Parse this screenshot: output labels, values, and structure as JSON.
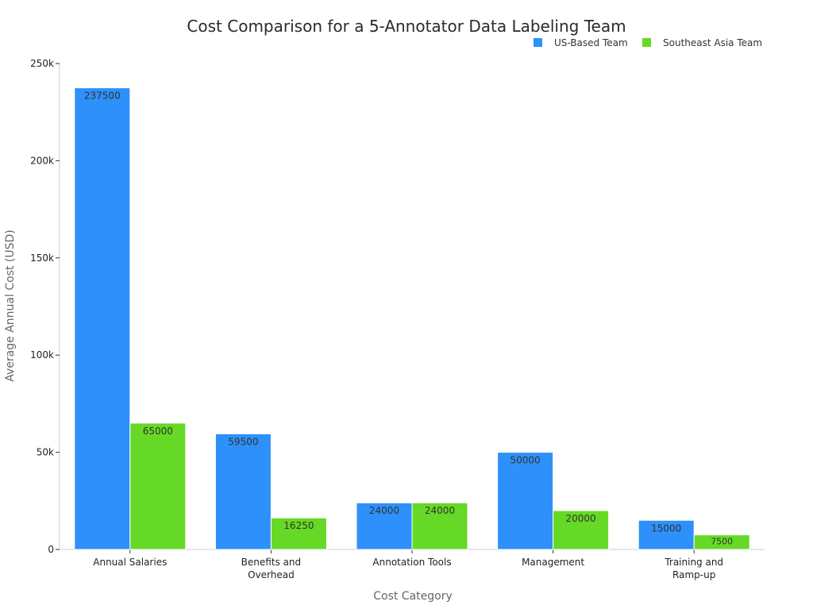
{
  "chart_data": {
    "type": "bar",
    "title": "Cost Comparison for a 5-Annotator Data Labeling Team",
    "xlabel": "Cost Category",
    "ylabel": "Average Annual Cost (USD)",
    "ylim": [
      0,
      250000
    ],
    "y_ticks": [
      0,
      50000,
      100000,
      150000,
      200000,
      250000
    ],
    "y_tick_labels": [
      "0",
      "50k",
      "100k",
      "150k",
      "200k",
      "250k"
    ],
    "legend_position": "top-right",
    "categories": [
      [
        "Annual Salaries"
      ],
      [
        "Benefits and",
        "Overhead"
      ],
      [
        "Annotation Tools"
      ],
      [
        "Management"
      ],
      [
        "Training and",
        "Ramp-up"
      ]
    ],
    "series": [
      {
        "name": "US-Based Team",
        "color": "#2e90fa",
        "values": [
          237500,
          59500,
          24000,
          50000,
          15000
        ],
        "labels": [
          "237500",
          "59500",
          "24000",
          "50000",
          "15000"
        ]
      },
      {
        "name": "Southeast Asia Team",
        "color": "#66d926",
        "values": [
          65000,
          16250,
          24000,
          20000,
          7500
        ],
        "labels": [
          "65000",
          "16250",
          "24000",
          "20000",
          "7500"
        ]
      }
    ]
  }
}
